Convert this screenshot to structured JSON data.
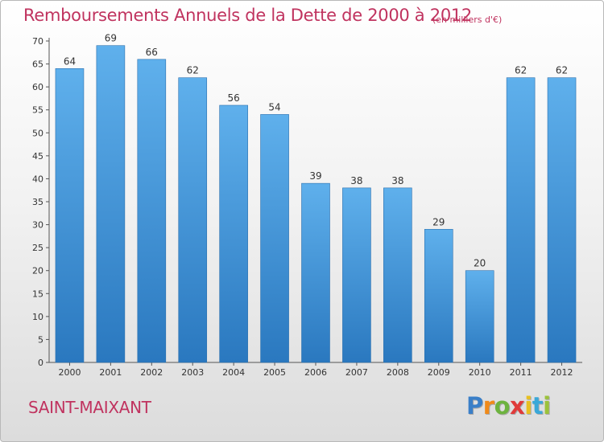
{
  "chart_data": {
    "type": "bar",
    "title": "Remboursements Annuels de la Dette de 2000 à 2012",
    "unit_note": "(en milliers d'€)",
    "categories": [
      "2000",
      "2001",
      "2002",
      "2003",
      "2004",
      "2005",
      "2006",
      "2007",
      "2008",
      "2009",
      "2010",
      "2011",
      "2012"
    ],
    "values": [
      64,
      69,
      66,
      62,
      56,
      54,
      39,
      38,
      38,
      29,
      20,
      62,
      62
    ],
    "xlabel": "",
    "ylabel": "",
    "ylim": [
      0,
      70
    ],
    "yticks": [
      0,
      5,
      10,
      15,
      20,
      25,
      30,
      35,
      40,
      45,
      50,
      55,
      60,
      65,
      70
    ],
    "grid": false,
    "bar_color": "#3a8fd6"
  },
  "footer": {
    "commune": "SAINT-MAIXANT",
    "logo_letters": [
      "P",
      "r",
      "o",
      "x",
      "i",
      "t",
      "i"
    ],
    "logo_colors": [
      "#3a7fc8",
      "#f08a1a",
      "#6db33f",
      "#e03a3a",
      "#e8c020",
      "#3aa8d8",
      "#9bc23a"
    ]
  }
}
